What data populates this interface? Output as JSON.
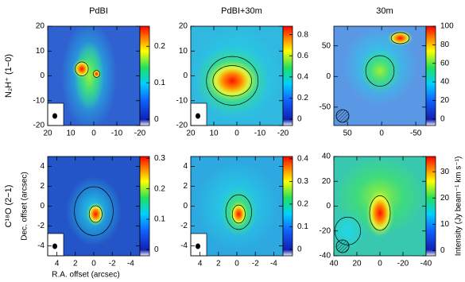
{
  "chart_data": [
    {
      "type": "heatmap",
      "title": "PdBI",
      "row_label": "N₂H⁺ (1−0)",
      "xlim": [
        20,
        -20
      ],
      "ylim": [
        -20,
        20
      ],
      "xticks": [
        20,
        10,
        0,
        -10,
        -20
      ],
      "yticks": [
        -20,
        -10,
        0,
        10,
        20
      ],
      "colorbar": {
        "lim": [
          -0.017,
          0.255
        ],
        "ticks": [
          0,
          0.1,
          0.2
        ]
      }
    },
    {
      "type": "heatmap",
      "title": "PdBI+30m",
      "xlim": [
        20,
        -20
      ],
      "ylim": [
        -20,
        20
      ],
      "xticks": [
        20,
        10,
        0,
        -10,
        -20
      ],
      "yticks": [
        -20,
        -10,
        0,
        10,
        20
      ],
      "colorbar": {
        "lim": [
          -0.06,
          0.88
        ],
        "ticks": [
          0,
          0.2,
          0.4,
          0.6,
          0.8
        ]
      }
    },
    {
      "type": "heatmap",
      "title": "30m",
      "xlim": [
        70,
        -65
      ],
      "ylim": [
        -80,
        82
      ],
      "xticks": [
        50,
        0,
        -50
      ],
      "yticks": [
        -50,
        0,
        50
      ],
      "colorbar": {
        "lim": [
          -7,
          100
        ],
        "ticks": [
          0,
          20,
          40,
          60,
          80,
          100
        ]
      }
    },
    {
      "type": "heatmap",
      "row_label": "C¹⁸O (2−1)",
      "x_label": "R.A. offset (arcsec)",
      "y_label": "Dec. offset (arcsec)",
      "xlim": [
        5,
        -5
      ],
      "ylim": [
        -5,
        5
      ],
      "xticks": [
        4,
        2,
        0,
        -2,
        -4
      ],
      "yticks": [
        -4,
        -2,
        0,
        2,
        4
      ],
      "colorbar": {
        "lim": [
          -0.02,
          0.306
        ],
        "ticks": [
          0,
          0.1,
          0.2,
          0.3
        ]
      }
    },
    {
      "type": "heatmap",
      "xlim": [
        5,
        -5
      ],
      "ylim": [
        -5,
        5
      ],
      "xticks": [
        4,
        2,
        0,
        -2,
        -4
      ],
      "yticks": [
        -4,
        -2,
        0,
        2,
        4
      ],
      "colorbar": {
        "lim": [
          -0.028,
          0.41
        ],
        "ticks": [
          0,
          0.1,
          0.2,
          0.3,
          0.4
        ]
      }
    },
    {
      "type": "heatmap",
      "colorbar_label": "Intensity (Jy beam⁻¹ km s⁻¹)",
      "xlim": [
        40,
        -40
      ],
      "ylim": [
        -40,
        40
      ],
      "xticks": [
        40,
        20,
        0,
        -20,
        -40
      ],
      "yticks": [
        -40,
        -20,
        0,
        20,
        40
      ],
      "colorbar": {
        "lim": [
          -2,
          35.8
        ],
        "ticks": [
          0,
          10,
          20,
          30
        ]
      }
    }
  ]
}
